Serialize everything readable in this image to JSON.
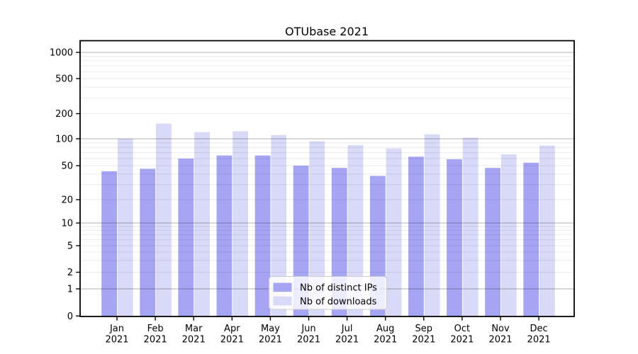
{
  "chart_data": {
    "type": "bar",
    "title": "OTUbase 2021",
    "categories": [
      [
        "Jan",
        "2021"
      ],
      [
        "Feb",
        "2021"
      ],
      [
        "Mar",
        "2021"
      ],
      [
        "Apr",
        "2021"
      ],
      [
        "May",
        "2021"
      ],
      [
        "Jun",
        "2021"
      ],
      [
        "Jul",
        "2021"
      ],
      [
        "Aug",
        "2021"
      ],
      [
        "Sep",
        "2021"
      ],
      [
        "Oct",
        "2021"
      ],
      [
        "Nov",
        "2021"
      ],
      [
        "Dec",
        "2021"
      ]
    ],
    "series": [
      {
        "name": "Nb of distinct IPs",
        "color": "#a5a5f3",
        "values": [
          43,
          46,
          60,
          65,
          65,
          50,
          47,
          38,
          63,
          59,
          47,
          54
        ]
      },
      {
        "name": "Nb of downloads",
        "color": "#d9d9f8",
        "values": [
          100,
          152,
          120,
          123,
          111,
          94,
          85,
          78,
          113,
          103,
          67,
          84
        ]
      }
    ],
    "yaxis": {
      "scale": "symlog",
      "tick_values": [
        1000,
        500,
        200,
        100,
        50,
        20,
        10,
        5,
        2,
        1,
        0
      ],
      "tick_labels": [
        "1000",
        "500",
        "200",
        "100",
        "50",
        "20",
        "10",
        "5",
        "2",
        "1",
        "0"
      ],
      "major_gridlines": [
        1,
        10,
        100,
        1000
      ],
      "ylim": [
        0,
        1400
      ]
    },
    "xlabel": "",
    "ylabel": "",
    "grid": true,
    "legend": {
      "position": "lower-center",
      "entries": [
        "Nb of distinct IPs",
        "Nb of downloads"
      ]
    }
  }
}
